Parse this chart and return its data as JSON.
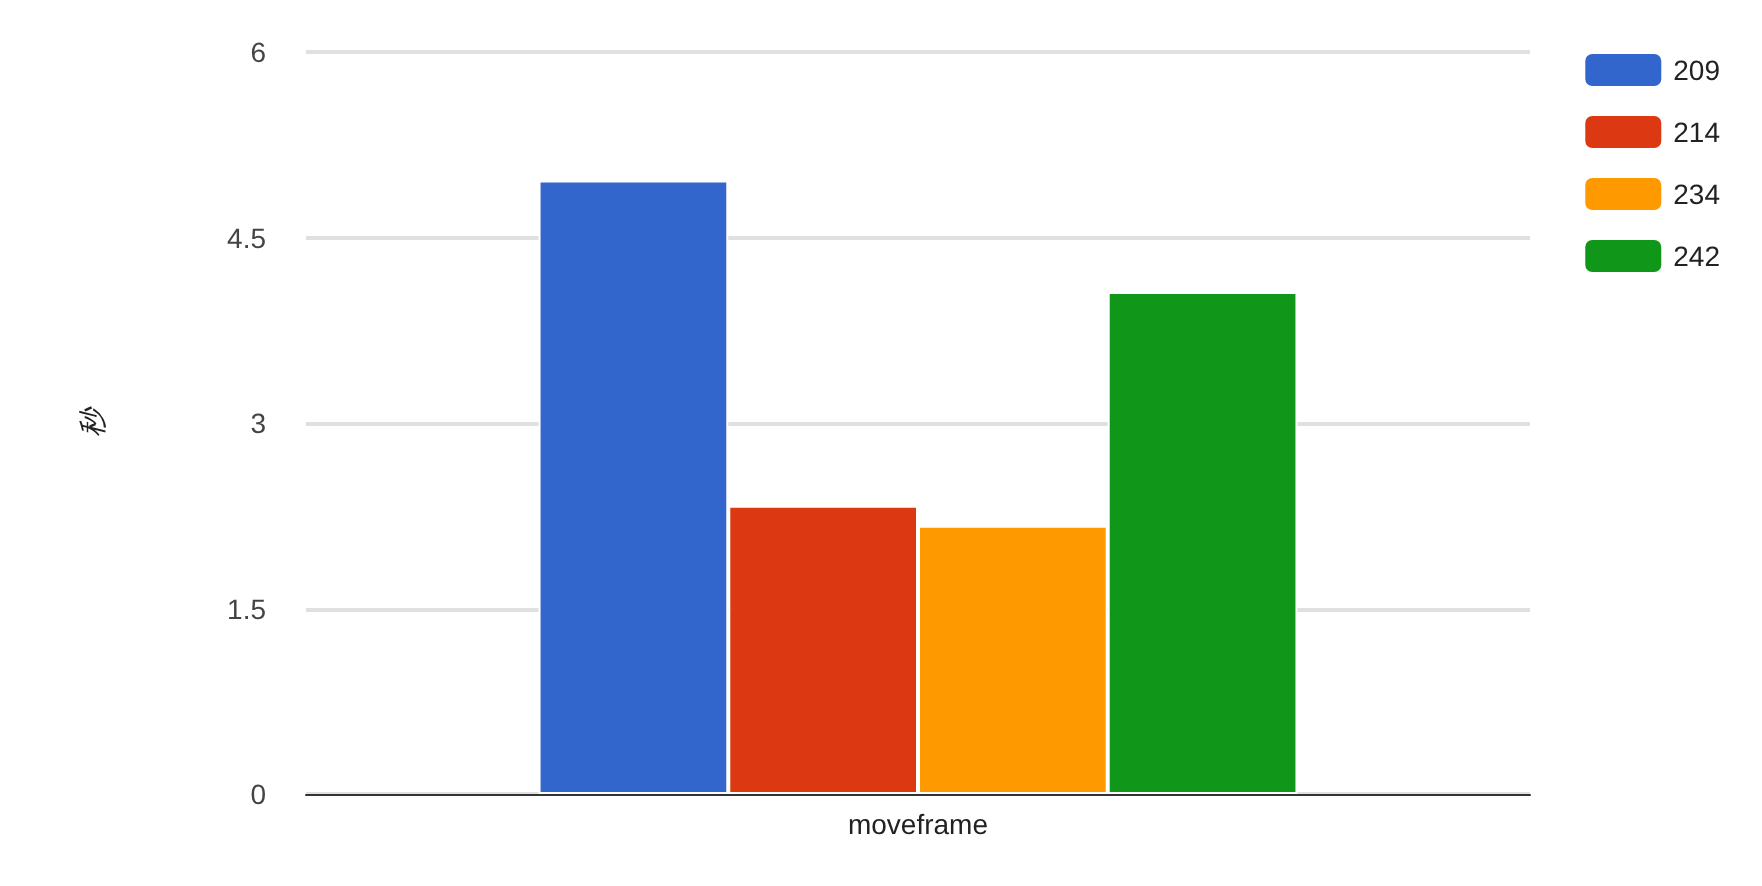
{
  "chart_data": {
    "type": "bar",
    "ylabel": "秒",
    "categories": [
      "moveframe"
    ],
    "series": [
      {
        "name": "209",
        "color": "#3366cc",
        "values": [
          4.96
        ]
      },
      {
        "name": "214",
        "color": "#dc3912",
        "values": [
          2.33
        ]
      },
      {
        "name": "234",
        "color": "#ff9900",
        "values": [
          2.17
        ]
      },
      {
        "name": "242",
        "color": "#109618",
        "values": [
          4.06
        ]
      }
    ],
    "ylim": [
      0,
      6
    ],
    "yticks": [
      0,
      1.5,
      3,
      4.5,
      6
    ],
    "grid": "y",
    "legend": "top right"
  }
}
